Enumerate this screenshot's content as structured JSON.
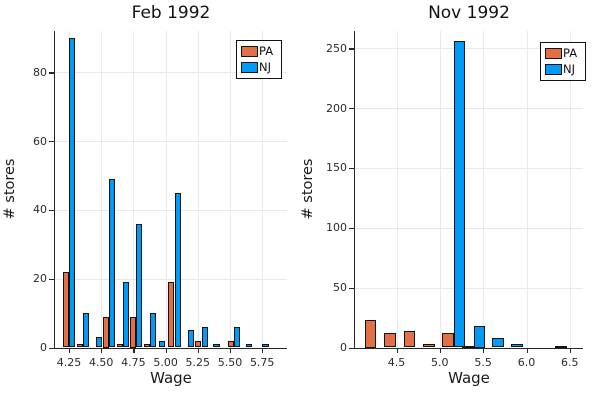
{
  "figure_bg": "#ffffff",
  "series_meta": [
    {
      "key": "pa",
      "name": "PA",
      "color": "#e26f46"
    },
    {
      "key": "nj",
      "name": "NJ",
      "color": "#009af9"
    }
  ],
  "legend": {
    "items": [
      "PA",
      "NJ"
    ]
  },
  "chart_data": [
    {
      "type": "bar",
      "title": "Feb 1992",
      "xlabel": "Wage",
      "ylabel": "# stores",
      "legend_position": "top-right",
      "grid": true,
      "xlim": [
        4.14,
        5.94
      ],
      "ylim": [
        0,
        92
      ],
      "x_ticks": [
        {
          "v": 4.25,
          "label": "4.25"
        },
        {
          "v": 4.5,
          "label": "4.50"
        },
        {
          "v": 4.75,
          "label": "4.75"
        },
        {
          "v": 5.0,
          "label": "5.00"
        },
        {
          "v": 5.25,
          "label": "5.25"
        },
        {
          "v": 5.5,
          "label": "5.50"
        },
        {
          "v": 5.75,
          "label": "5.75"
        }
      ],
      "y_ticks": [
        {
          "v": 0,
          "label": "0"
        },
        {
          "v": 20,
          "label": "20"
        },
        {
          "v": 40,
          "label": "40"
        },
        {
          "v": 60,
          "label": "60"
        },
        {
          "v": 80,
          "label": "80"
        }
      ],
      "series": [
        {
          "name": "PA",
          "color": "#e26f46"
        },
        {
          "name": "NJ",
          "color": "#009af9"
        }
      ],
      "groups": [
        {
          "wage": 4.25,
          "pa": 22,
          "nj": 90
        },
        {
          "wage": 4.36,
          "pa": 1,
          "nj": 10
        },
        {
          "wage": 4.46,
          "pa": 0,
          "nj": 3
        },
        {
          "wage": 4.56,
          "pa": 9,
          "nj": 49
        },
        {
          "wage": 4.67,
          "pa": 1,
          "nj": 19
        },
        {
          "wage": 4.77,
          "pa": 9,
          "nj": 36
        },
        {
          "wage": 4.88,
          "pa": 1,
          "nj": 10
        },
        {
          "wage": 4.95,
          "pa": 0,
          "nj": 2
        },
        {
          "wage": 5.07,
          "pa": 19,
          "nj": 45
        },
        {
          "wage": 5.17,
          "pa": 0,
          "nj": 5
        },
        {
          "wage": 5.28,
          "pa": 2,
          "nj": 6
        },
        {
          "wage": 5.37,
          "pa": 0,
          "nj": 1
        },
        {
          "wage": 5.53,
          "pa": 2,
          "nj": 6
        },
        {
          "wage": 5.62,
          "pa": 0,
          "nj": 1
        },
        {
          "wage": 5.75,
          "pa": 0,
          "nj": 1
        }
      ]
    },
    {
      "type": "bar",
      "title": "Nov 1992",
      "xlabel": "Wage",
      "ylabel": "# stores",
      "legend_position": "top-right",
      "grid": true,
      "xlim": [
        4.02,
        6.58
      ],
      "ylim": [
        0,
        264
      ],
      "x_ticks": [
        {
          "v": 4.5,
          "label": "4.5"
        },
        {
          "v": 5.0,
          "label": "5.0"
        },
        {
          "v": 5.5,
          "label": "5.5"
        },
        {
          "v": 6.0,
          "label": "6.0"
        },
        {
          "v": 6.5,
          "label": "6.5"
        }
      ],
      "y_ticks": [
        {
          "v": 0,
          "label": "0"
        },
        {
          "v": 50,
          "label": "50"
        },
        {
          "v": 100,
          "label": "100"
        },
        {
          "v": 150,
          "label": "150"
        },
        {
          "v": 200,
          "label": "200"
        },
        {
          "v": 250,
          "label": "250"
        }
      ],
      "series": [
        {
          "name": "PA",
          "color": "#e26f46"
        },
        {
          "name": "NJ",
          "color": "#009af9"
        }
      ],
      "groups": [
        {
          "wage": 4.27,
          "pa": 23,
          "nj": 0
        },
        {
          "wage": 4.49,
          "pa": 12,
          "nj": 0
        },
        {
          "wage": 4.72,
          "pa": 14,
          "nj": 0
        },
        {
          "wage": 4.94,
          "pa": 3,
          "nj": 0
        },
        {
          "wage": 5.16,
          "pa": 12,
          "nj": 256
        },
        {
          "wage": 5.39,
          "pa": 1,
          "nj": 18
        },
        {
          "wage": 5.6,
          "pa": 0,
          "nj": 8
        },
        {
          "wage": 5.82,
          "pa": 0,
          "nj": 3
        },
        {
          "wage": 6.33,
          "pa": 0,
          "nj": 1
        }
      ]
    }
  ]
}
